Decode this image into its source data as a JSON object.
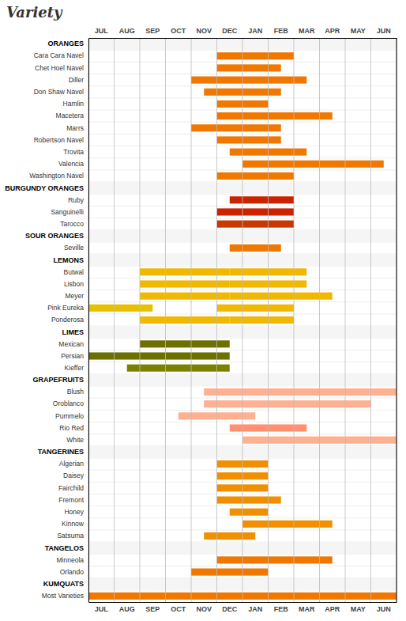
{
  "chart_data": {
    "type": "bar",
    "orientation": "horizontal",
    "title": "Variety",
    "categories": [
      "JUL",
      "AUG",
      "SEP",
      "OCT",
      "NOV",
      "DEC",
      "JAN",
      "FEB",
      "MAR",
      "APR",
      "MAY",
      "JUN"
    ],
    "xlim": [
      0,
      12
    ],
    "rows": [
      {
        "name": "ORANGES"
      },
      {
        "name": "Cara Cara Navel",
        "bars": [
          {
            "start": 5.0,
            "end": 8.0,
            "color": "#f07800"
          }
        ]
      },
      {
        "name": "Chet Hoel Navel",
        "bars": [
          {
            "start": 5.0,
            "end": 7.5,
            "color": "#f07800"
          }
        ]
      },
      {
        "name": "Diller",
        "bars": [
          {
            "start": 4.0,
            "end": 8.5,
            "color": "#f07800"
          }
        ]
      },
      {
        "name": "Don Shaw Navel",
        "bars": [
          {
            "start": 4.5,
            "end": 7.5,
            "color": "#f07800"
          }
        ]
      },
      {
        "name": "Hamlin",
        "bars": [
          {
            "start": 5.0,
            "end": 7.0,
            "color": "#f07800"
          }
        ]
      },
      {
        "name": "Macetera",
        "bars": [
          {
            "start": 5.0,
            "end": 9.5,
            "color": "#f07800"
          }
        ]
      },
      {
        "name": "Marrs",
        "bars": [
          {
            "start": 4.0,
            "end": 7.5,
            "color": "#f07800"
          }
        ]
      },
      {
        "name": "Robertson Navel",
        "bars": [
          {
            "start": 5.0,
            "end": 7.5,
            "color": "#f07800"
          }
        ]
      },
      {
        "name": "Trovita",
        "bars": [
          {
            "start": 5.5,
            "end": 8.5,
            "color": "#f07800"
          }
        ]
      },
      {
        "name": "Valencia",
        "bars": [
          {
            "start": 6.0,
            "end": 11.5,
            "color": "#f07800"
          }
        ]
      },
      {
        "name": "Washington Navel",
        "bars": [
          {
            "start": 5.0,
            "end": 8.0,
            "color": "#f07800"
          }
        ]
      },
      {
        "name": "BURGUNDY ORANGES"
      },
      {
        "name": "Ruby",
        "bars": [
          {
            "start": 5.5,
            "end": 8.0,
            "color": "#cc2200"
          }
        ]
      },
      {
        "name": "Sanguinelli",
        "bars": [
          {
            "start": 5.0,
            "end": 8.0,
            "color": "#cc2200"
          }
        ]
      },
      {
        "name": "Tarocco",
        "bars": [
          {
            "start": 5.0,
            "end": 8.0,
            "color": "#c83800"
          }
        ]
      },
      {
        "name": "SOUR ORANGES"
      },
      {
        "name": "Seville",
        "bars": [
          {
            "start": 5.5,
            "end": 7.5,
            "color": "#f07800"
          }
        ]
      },
      {
        "name": "LEMONS"
      },
      {
        "name": "Butwal",
        "bars": [
          {
            "start": 2.0,
            "end": 5.5,
            "color": "#f0b800"
          },
          {
            "start": 5.5,
            "end": 8.5,
            "color": "#f0b800"
          }
        ]
      },
      {
        "name": "Lisbon",
        "bars": [
          {
            "start": 2.0,
            "end": 5.5,
            "color": "#f0b800"
          },
          {
            "start": 5.5,
            "end": 8.5,
            "color": "#f0b800"
          }
        ]
      },
      {
        "name": "Meyer",
        "bars": [
          {
            "start": 2.0,
            "end": 5.5,
            "color": "#f0b800"
          },
          {
            "start": 5.5,
            "end": 9.5,
            "color": "#f0b800"
          }
        ]
      },
      {
        "name": "Pink Eureka",
        "bars": [
          {
            "start": 0.0,
            "end": 2.5,
            "color": "#e8c000"
          },
          {
            "start": 5.0,
            "end": 8.0,
            "color": "#f0b800"
          }
        ]
      },
      {
        "name": "Ponderosa",
        "bars": [
          {
            "start": 2.0,
            "end": 5.5,
            "color": "#f0b800"
          },
          {
            "start": 5.5,
            "end": 8.0,
            "color": "#f0b800"
          }
        ]
      },
      {
        "name": "LIMES"
      },
      {
        "name": "Mexican",
        "bars": [
          {
            "start": 2.0,
            "end": 5.5,
            "color": "#6b7000"
          }
        ]
      },
      {
        "name": "Persian",
        "bars": [
          {
            "start": 0.0,
            "end": 5.5,
            "color": "#6b7000"
          }
        ]
      },
      {
        "name": "Kieffer",
        "bars": [
          {
            "start": 1.5,
            "end": 5.5,
            "color": "#7a8000"
          }
        ]
      },
      {
        "name": "GRAPEFRUITS"
      },
      {
        "name": "Blush",
        "bars": [
          {
            "start": 4.5,
            "end": 12.0,
            "color": "#ffb090"
          }
        ]
      },
      {
        "name": "Oroblanco",
        "bars": [
          {
            "start": 4.5,
            "end": 11.0,
            "color": "#ffb090"
          }
        ]
      },
      {
        "name": "Pummelo",
        "bars": [
          {
            "start": 3.5,
            "end": 6.5,
            "color": "#ffb090"
          }
        ]
      },
      {
        "name": "Rio Red",
        "bars": [
          {
            "start": 5.5,
            "end": 8.5,
            "color": "#ff9070"
          }
        ]
      },
      {
        "name": "White",
        "bars": [
          {
            "start": 6.0,
            "end": 12.0,
            "color": "#ffb090"
          }
        ]
      },
      {
        "name": "TANGERINES"
      },
      {
        "name": "Algerian",
        "bars": [
          {
            "start": 5.0,
            "end": 7.0,
            "color": "#f09000"
          }
        ]
      },
      {
        "name": "Daisey",
        "bars": [
          {
            "start": 5.0,
            "end": 7.0,
            "color": "#f09000"
          }
        ]
      },
      {
        "name": "Fairchild",
        "bars": [
          {
            "start": 5.0,
            "end": 7.0,
            "color": "#f09000"
          }
        ]
      },
      {
        "name": "Fremont",
        "bars": [
          {
            "start": 5.0,
            "end": 7.5,
            "color": "#f09000"
          }
        ]
      },
      {
        "name": "Honey",
        "bars": [
          {
            "start": 5.5,
            "end": 7.0,
            "color": "#f09000"
          }
        ]
      },
      {
        "name": "Kinnow",
        "bars": [
          {
            "start": 6.0,
            "end": 9.5,
            "color": "#f09000"
          }
        ]
      },
      {
        "name": "Satsuma",
        "bars": [
          {
            "start": 4.5,
            "end": 6.5,
            "color": "#f09000"
          }
        ]
      },
      {
        "name": "TANGELOS"
      },
      {
        "name": "Minneola",
        "bars": [
          {
            "start": 5.0,
            "end": 9.5,
            "color": "#f07800"
          }
        ]
      },
      {
        "name": "Orlando",
        "bars": [
          {
            "start": 4.0,
            "end": 7.0,
            "color": "#f07800"
          }
        ]
      },
      {
        "name": "KUMQUATS"
      },
      {
        "name": "Most Varieties",
        "bars": [
          {
            "start": 0.0,
            "end": 12.0,
            "color": "#f07800"
          }
        ]
      }
    ]
  }
}
